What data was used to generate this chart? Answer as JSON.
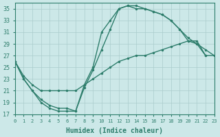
{
  "xlabel": "Humidex (Indice chaleur)",
  "bg_color": "#cce8e8",
  "grid_color": "#aacccc",
  "line_color": "#2d7d6b",
  "xlim": [
    0,
    23
  ],
  "ylim": [
    17,
    36
  ],
  "xticks": [
    0,
    1,
    2,
    3,
    4,
    5,
    6,
    7,
    8,
    9,
    10,
    11,
    12,
    13,
    14,
    15,
    16,
    17,
    18,
    19,
    20,
    21,
    22,
    23
  ],
  "yticks": [
    17,
    19,
    21,
    23,
    25,
    27,
    29,
    31,
    33,
    35
  ],
  "line1_x": [
    0,
    1,
    2,
    3,
    4,
    5,
    6,
    7,
    8,
    9,
    10,
    11,
    12,
    13,
    14,
    15,
    16,
    17,
    18,
    19,
    20,
    21,
    22,
    23
  ],
  "line1_y": [
    26,
    23,
    21,
    19,
    18,
    17.5,
    17.5,
    17.5,
    22,
    25,
    31,
    33,
    35,
    35.5,
    35,
    35,
    34.5,
    34,
    33,
    31.5,
    29.5,
    29,
    27,
    27
  ],
  "line2_x": [
    0,
    1,
    2,
    3,
    4,
    5,
    6,
    7,
    8,
    9,
    10,
    11,
    12,
    13,
    14,
    15,
    16,
    17,
    18,
    19,
    20,
    21,
    22,
    23
  ],
  "line2_y": [
    26,
    23,
    21,
    19.5,
    18.5,
    18,
    18,
    17.5,
    21.5,
    24.5,
    28,
    31.5,
    35,
    35.5,
    35.5,
    35,
    34.5,
    34,
    33,
    31.5,
    30,
    29,
    28,
    27
  ],
  "line3_x": [
    0,
    1,
    2,
    3,
    4,
    5,
    6,
    7,
    8,
    9,
    10,
    11,
    12,
    13,
    14,
    15,
    16,
    17,
    18,
    19,
    20,
    21,
    22
  ],
  "line3_y": [
    26,
    23.5,
    22,
    21,
    21,
    21,
    21,
    21,
    22,
    23,
    24,
    25,
    26,
    26.5,
    27,
    27,
    27.5,
    28,
    28.5,
    29,
    29.5,
    29.5,
    27
  ]
}
